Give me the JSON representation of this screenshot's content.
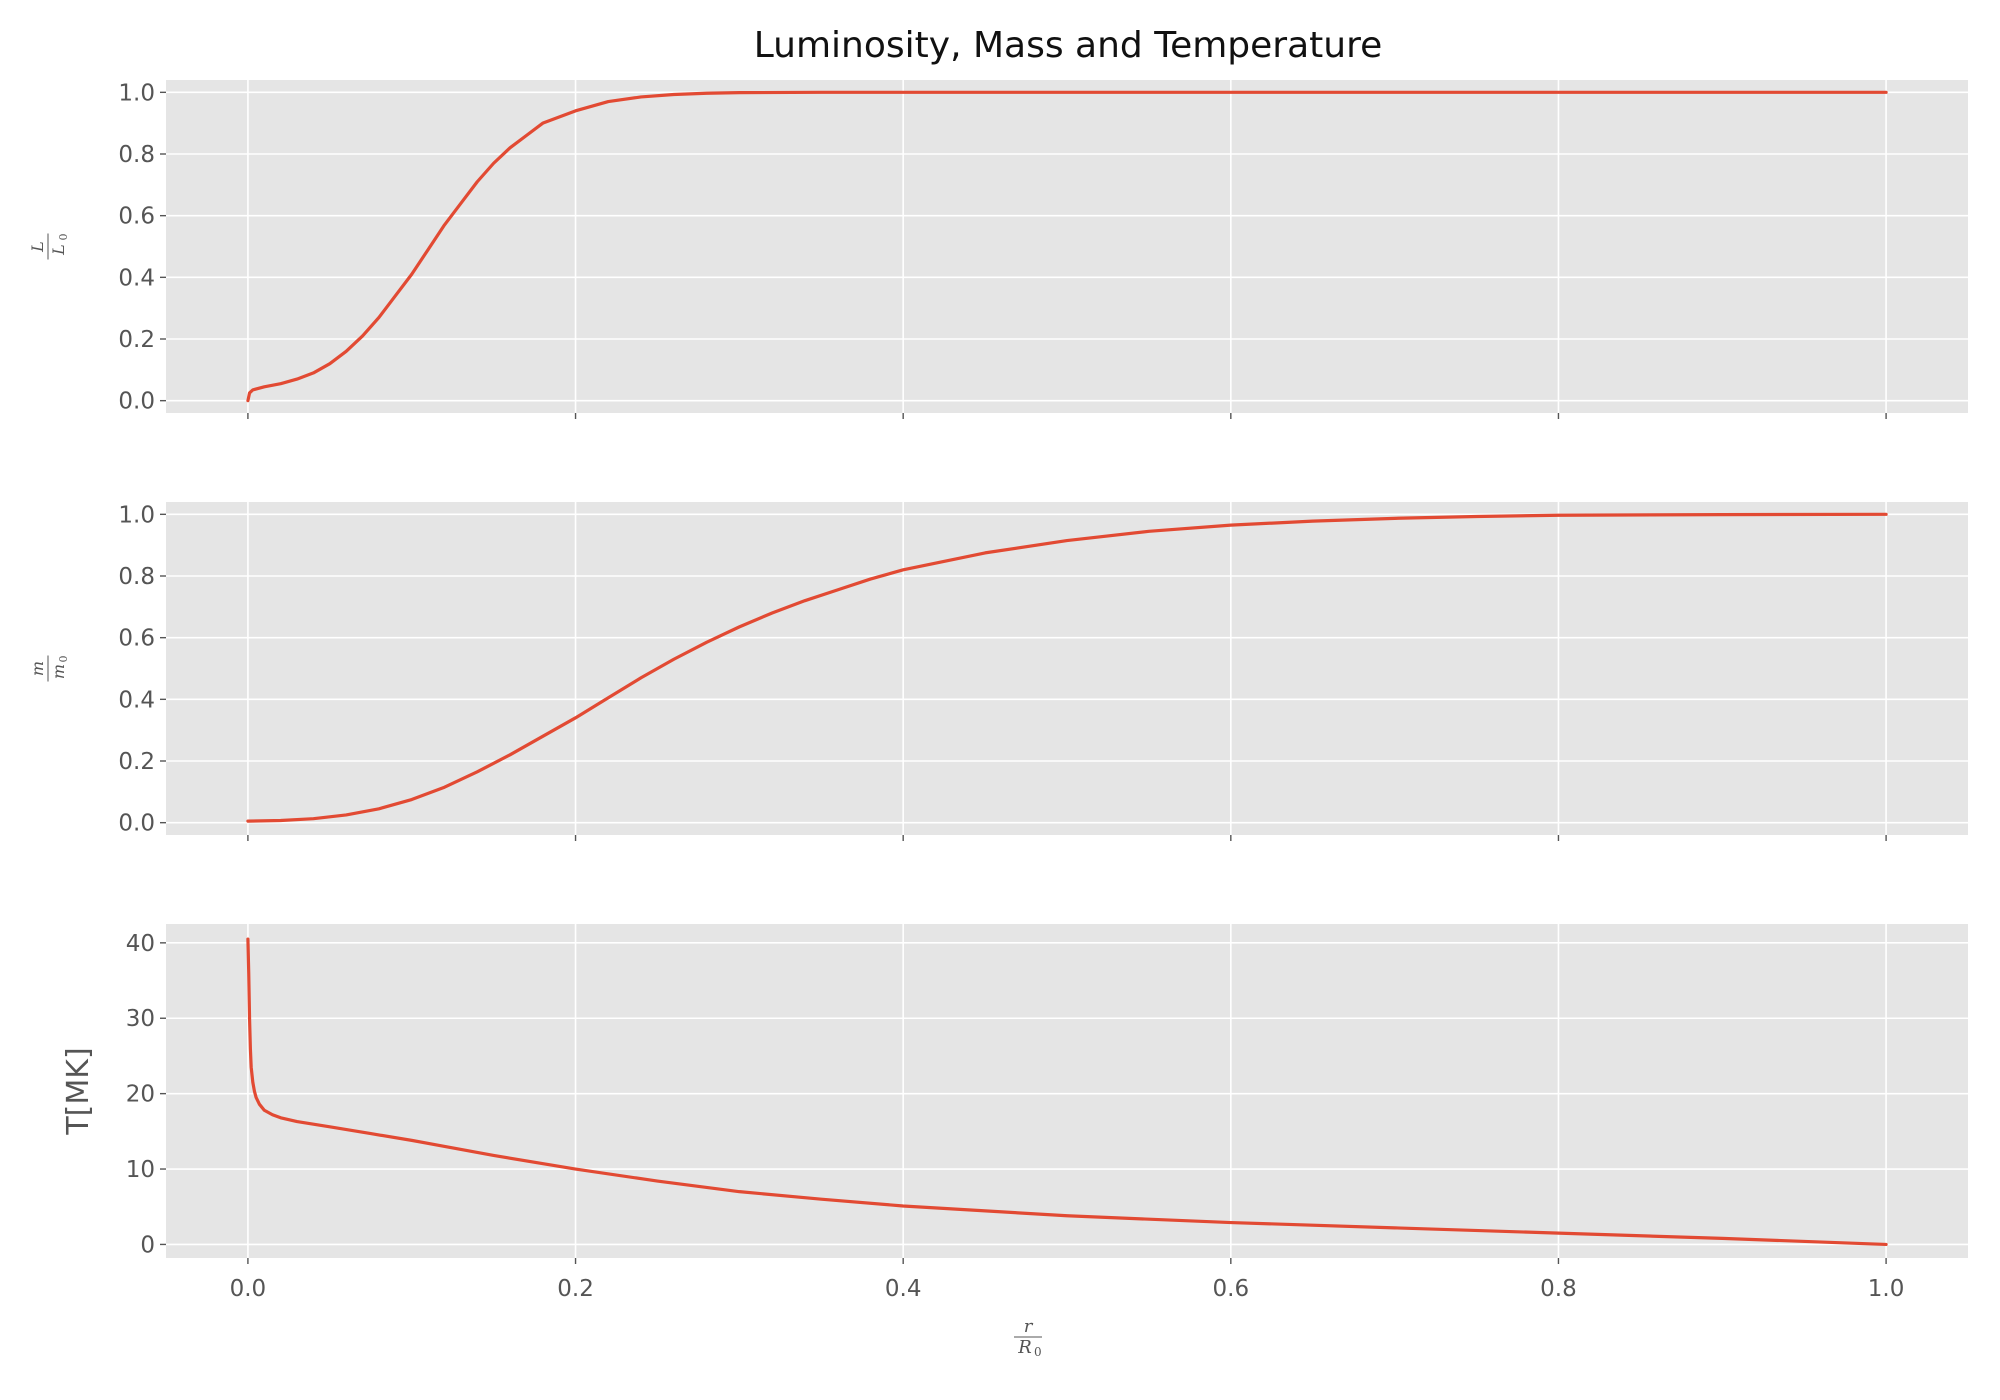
{
  "chart_data": {
    "title": "Luminosity, Mass and Temperature",
    "colors": {
      "line": "#E24A33",
      "panel_bg": "#E5E5E5",
      "grid": "#FFFFFF",
      "tick_text": "#555555"
    },
    "grid": true,
    "shared_x": true,
    "x_axis": {
      "label": {
        "num": "r",
        "den": "R",
        "den_sub": "0"
      },
      "range": [
        -0.05,
        1.05
      ],
      "ticks": [
        0.0,
        0.2,
        0.4,
        0.6,
        0.8,
        1.0
      ],
      "tick_labels": [
        "0.0",
        "0.2",
        "0.4",
        "0.6",
        "0.8",
        "1.0"
      ]
    },
    "panels": [
      {
        "type": "line",
        "ylabel": {
          "num": "L",
          "den": "L",
          "den_sub": "0"
        },
        "ylim": [
          -0.04,
          1.04
        ],
        "yticks": [
          0.0,
          0.2,
          0.4,
          0.6,
          0.8,
          1.0
        ],
        "ytick_labels": [
          "0.0",
          "0.2",
          "0.4",
          "0.6",
          "0.8",
          "1.0"
        ],
        "x": [
          0.0,
          0.001,
          0.003,
          0.01,
          0.02,
          0.03,
          0.04,
          0.05,
          0.06,
          0.07,
          0.08,
          0.09,
          0.1,
          0.11,
          0.12,
          0.13,
          0.14,
          0.15,
          0.16,
          0.17,
          0.18,
          0.19,
          0.2,
          0.22,
          0.24,
          0.26,
          0.28,
          0.3,
          0.35,
          0.4,
          0.5,
          0.6,
          0.8,
          1.0
        ],
        "y": [
          0.0,
          0.025,
          0.035,
          0.045,
          0.055,
          0.07,
          0.09,
          0.12,
          0.16,
          0.21,
          0.27,
          0.34,
          0.41,
          0.49,
          0.57,
          0.64,
          0.71,
          0.77,
          0.82,
          0.86,
          0.9,
          0.92,
          0.94,
          0.97,
          0.985,
          0.993,
          0.997,
          0.999,
          1.0,
          1.0,
          1.0,
          1.0,
          1.0,
          1.0
        ]
      },
      {
        "type": "line",
        "ylabel": {
          "num": "m",
          "den": "m",
          "den_sub": "0"
        },
        "ylim": [
          -0.04,
          1.04
        ],
        "yticks": [
          0.0,
          0.2,
          0.4,
          0.6,
          0.8,
          1.0
        ],
        "ytick_labels": [
          "0.0",
          "0.2",
          "0.4",
          "0.6",
          "0.8",
          "1.0"
        ],
        "x": [
          0.0,
          0.02,
          0.04,
          0.06,
          0.08,
          0.1,
          0.12,
          0.14,
          0.16,
          0.18,
          0.2,
          0.22,
          0.24,
          0.26,
          0.28,
          0.3,
          0.32,
          0.34,
          0.36,
          0.38,
          0.4,
          0.45,
          0.5,
          0.55,
          0.6,
          0.65,
          0.7,
          0.75,
          0.8,
          0.9,
          1.0
        ],
        "y": [
          0.005,
          0.007,
          0.013,
          0.025,
          0.045,
          0.075,
          0.115,
          0.165,
          0.22,
          0.28,
          0.34,
          0.405,
          0.47,
          0.53,
          0.585,
          0.635,
          0.68,
          0.72,
          0.755,
          0.79,
          0.82,
          0.875,
          0.915,
          0.945,
          0.965,
          0.978,
          0.987,
          0.993,
          0.997,
          0.999,
          1.0
        ]
      },
      {
        "type": "line",
        "ylabel": {
          "text": "T[MK]"
        },
        "ylim": [
          -1.8,
          42.5
        ],
        "yticks": [
          0,
          10,
          20,
          30,
          40
        ],
        "ytick_labels": [
          "0",
          "10",
          "20",
          "30",
          "40"
        ],
        "x": [
          0.0,
          0.0005,
          0.001,
          0.0015,
          0.002,
          0.003,
          0.004,
          0.005,
          0.007,
          0.01,
          0.015,
          0.02,
          0.03,
          0.05,
          0.075,
          0.1,
          0.15,
          0.2,
          0.25,
          0.3,
          0.35,
          0.4,
          0.5,
          0.6,
          0.7,
          0.8,
          0.9,
          1.0
        ],
        "y": [
          40.5,
          36.0,
          30.0,
          26.0,
          23.5,
          21.5,
          20.3,
          19.5,
          18.6,
          17.8,
          17.2,
          16.8,
          16.3,
          15.6,
          14.7,
          13.8,
          11.8,
          10.0,
          8.4,
          7.0,
          6.0,
          5.1,
          3.8,
          2.9,
          2.2,
          1.5,
          0.8,
          0.0
        ]
      }
    ]
  }
}
